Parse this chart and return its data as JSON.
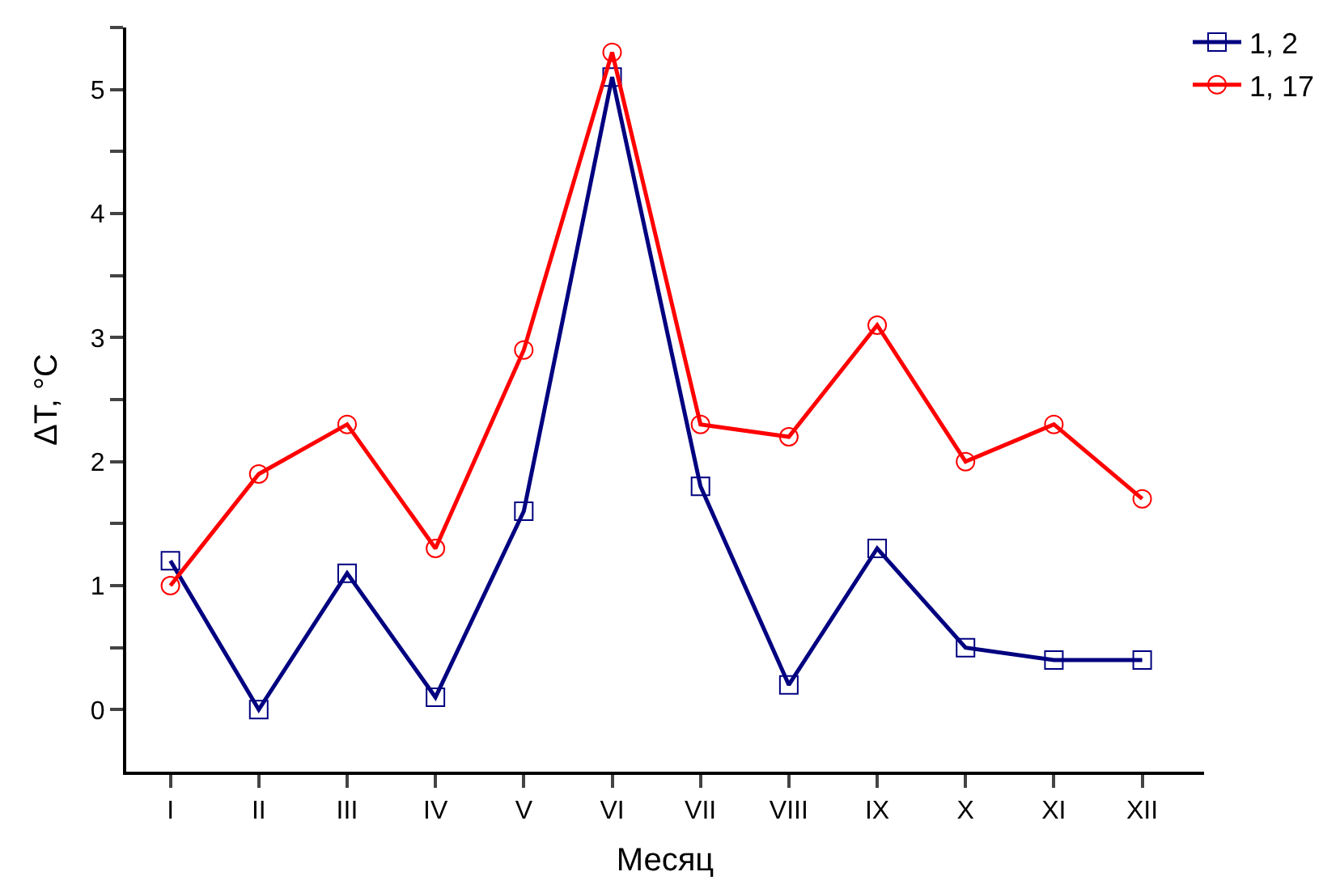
{
  "chart_data": {
    "type": "line",
    "xlabel": "Месяц",
    "ylabel": "ΔT, °C",
    "categories": [
      "I",
      "II",
      "III",
      "IV",
      "V",
      "VI",
      "VII",
      "VIII",
      "IX",
      "X",
      "XI",
      "XII"
    ],
    "series": [
      {
        "name": "1, 2",
        "color": "#000080",
        "marker": "square",
        "values": [
          1.2,
          0,
          1.1,
          0.1,
          1.6,
          5.1,
          1.8,
          0.2,
          1.3,
          0.5,
          0.4,
          0.4
        ]
      },
      {
        "name": "1, 17",
        "color": "#ff0000",
        "marker": "circle",
        "values": [
          1.0,
          1.9,
          2.3,
          1.3,
          2.9,
          5.3,
          2.3,
          2.2,
          3.1,
          2.0,
          2.3,
          1.7
        ]
      }
    ],
    "ylim": [
      -0.5,
      5.5
    ],
    "yticks": [
      0,
      1,
      2,
      3,
      4,
      5,
      {
        "value": 0.5,
        "label": null
      },
      {
        "value": 1.5,
        "label": null
      },
      {
        "value": 2.5,
        "label": null
      },
      {
        "value": 3.5,
        "label": null
      },
      {
        "value": 4.5,
        "label": null
      },
      {
        "value": 5.5,
        "label": null
      }
    ],
    "legend": "top right",
    "line_style": "solid"
  }
}
